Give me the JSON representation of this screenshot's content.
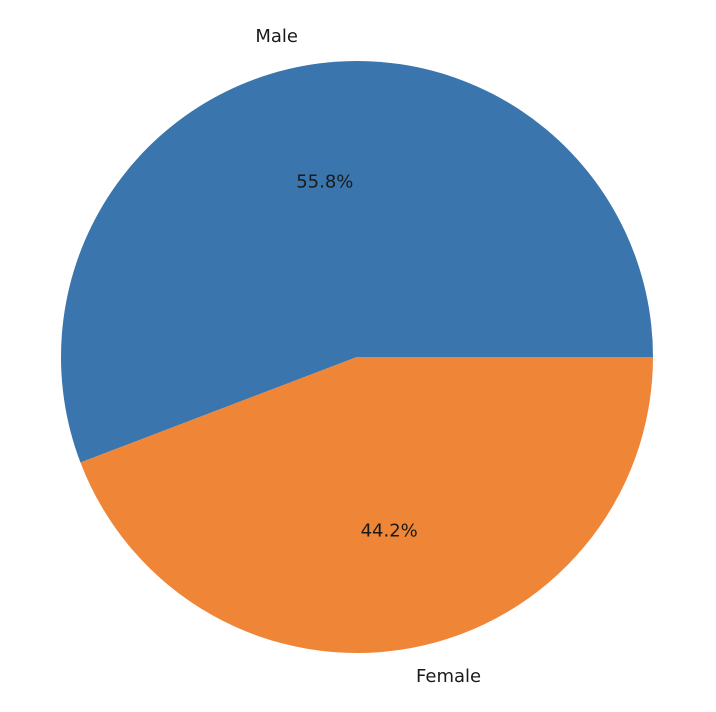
{
  "chart_data": {
    "type": "pie",
    "categories": [
      "Male",
      "Female"
    ],
    "values": [
      55.8,
      44.2
    ],
    "value_labels": [
      "55.8%",
      "44.2%"
    ],
    "colors": [
      "#3a75ae",
      "#ef8536"
    ]
  }
}
